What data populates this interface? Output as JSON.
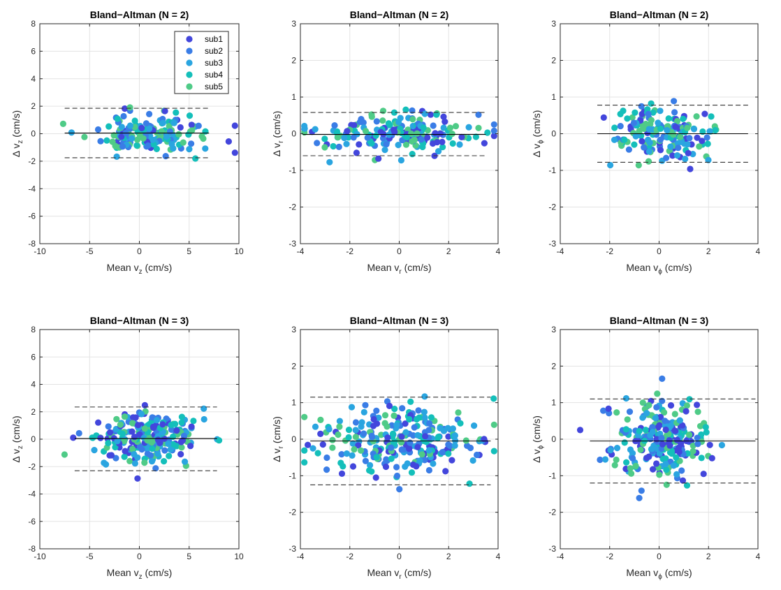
{
  "subjects": [
    {
      "name": "sub1",
      "color": "#4346DC"
    },
    {
      "name": "sub2",
      "color": "#3A7DE6"
    },
    {
      "name": "sub3",
      "color": "#2AA5E0"
    },
    {
      "name": "sub4",
      "color": "#14BFBA"
    },
    {
      "name": "sub5",
      "color": "#4FCB87"
    }
  ],
  "chart_data": [
    {
      "type": "scatter",
      "title": "Bland−Altman (N = 2)",
      "xlabel": "Mean v",
      "xsub": "z",
      "xunit": " (cm/s)",
      "ylabel_delta": "Δ",
      "ylabel": "v",
      "ysub": "z",
      "yunit": " (cm/s)",
      "xlim": [
        -10,
        10
      ],
      "ylim": [
        -8,
        8
      ],
      "xticks": [
        -10,
        -5,
        0,
        5,
        10
      ],
      "yticks": [
        -8,
        -6,
        -4,
        -2,
        0,
        2,
        4,
        6,
        8
      ],
      "bias": 0.05,
      "loa_upper": 1.85,
      "loa_lower": -1.75,
      "line_xrange": [
        -7.5,
        7
      ],
      "legend": true,
      "n_points": 160,
      "seed": 11,
      "spread_x": 3.0,
      "spread_y": 0.75,
      "mean_x": 0.8,
      "y_clip": 3.2
    },
    {
      "type": "scatter",
      "title": "Bland−Altman (N = 2)",
      "xlabel": "Mean v",
      "xsub": "r",
      "xunit": " (cm/s)",
      "ylabel_delta": "Δ",
      "ylabel": "v",
      "ysub": "r",
      "yunit": " (cm/s)",
      "xlim": [
        -4,
        4
      ],
      "ylim": [
        -3,
        3
      ],
      "xticks": [
        -4,
        -2,
        0,
        2,
        4
      ],
      "yticks": [
        -3,
        -2,
        -1,
        0,
        1,
        2,
        3
      ],
      "bias": -0.02,
      "loa_upper": 0.58,
      "loa_lower": -0.6,
      "line_xrange": [
        -3.9,
        3.5
      ],
      "legend": false,
      "n_points": 180,
      "seed": 23,
      "spread_x": 1.7,
      "spread_y": 0.26,
      "mean_x": 0.0,
      "y_clip": 1.2
    },
    {
      "type": "scatter",
      "title": "Bland−Altman (N = 2)",
      "xlabel": "Mean v",
      "xsub": "ϕ",
      "xunit": " (cm/s)",
      "ylabel_delta": "Δ",
      "ylabel": "v",
      "ysub": "ϕ",
      "yunit": " (cm/s)",
      "xlim": [
        -4,
        4
      ],
      "ylim": [
        -3,
        3
      ],
      "xticks": [
        -4,
        -2,
        0,
        2,
        4
      ],
      "yticks": [
        -3,
        -2,
        -1,
        0,
        1,
        2,
        3
      ],
      "bias": 0.0,
      "loa_upper": 0.78,
      "loa_lower": -0.78,
      "line_xrange": [
        -2.5,
        3.6
      ],
      "legend": false,
      "n_points": 170,
      "seed": 37,
      "spread_x": 1.1,
      "spread_y": 0.36,
      "mean_x": 0.0,
      "y_clip": 1.45
    },
    {
      "type": "scatter",
      "title": "Bland−Altman (N = 3)",
      "xlabel": "Mean v",
      "xsub": "z",
      "xunit": " (cm/s)",
      "ylabel_delta": "Δ",
      "ylabel": "v",
      "ysub": "z",
      "yunit": " (cm/s)",
      "xlim": [
        -10,
        10
      ],
      "ylim": [
        -8,
        8
      ],
      "xticks": [
        -10,
        -5,
        0,
        5,
        10
      ],
      "yticks": [
        -8,
        -6,
        -4,
        -2,
        0,
        2,
        4,
        6,
        8
      ],
      "bias": 0.05,
      "loa_upper": 2.35,
      "loa_lower": -2.3,
      "line_xrange": [
        -6.5,
        7.8
      ],
      "legend": false,
      "n_points": 240,
      "seed": 41,
      "spread_x": 2.8,
      "spread_y": 1.0,
      "mean_x": 0.5,
      "y_clip": 4.3
    },
    {
      "type": "scatter",
      "title": "Bland−Altman (N = 3)",
      "xlabel": "Mean v",
      "xsub": "r",
      "xunit": " (cm/s)",
      "ylabel_delta": "Δ",
      "ylabel": "v",
      "ysub": "r",
      "yunit": " (cm/s)",
      "xlim": [
        -4,
        4
      ],
      "ylim": [
        -3,
        3
      ],
      "xticks": [
        -4,
        -2,
        0,
        2,
        4
      ],
      "yticks": [
        -3,
        -2,
        -1,
        0,
        1,
        2,
        3
      ],
      "bias": -0.05,
      "loa_upper": 1.15,
      "loa_lower": -1.25,
      "line_xrange": [
        -3.6,
        3.7
      ],
      "legend": false,
      "n_points": 260,
      "seed": 53,
      "spread_x": 1.6,
      "spread_y": 0.5,
      "mean_x": 0.0,
      "y_clip": 1.9
    },
    {
      "type": "scatter",
      "title": "Bland−Altman (N = 3)",
      "xlabel": "Mean v",
      "xsub": "ϕ",
      "xunit": " (cm/s)",
      "ylabel_delta": "Δ",
      "ylabel": "v",
      "ysub": "ϕ",
      "yunit": " (cm/s)",
      "xlim": [
        -4,
        4
      ],
      "ylim": [
        -3,
        3
      ],
      "xticks": [
        -4,
        -2,
        0,
        2,
        4
      ],
      "yticks": [
        -3,
        -2,
        -1,
        0,
        1,
        2,
        3
      ],
      "bias": -0.05,
      "loa_upper": 1.1,
      "loa_lower": -1.2,
      "line_xrange": [
        -2.8,
        3.9
      ],
      "legend": false,
      "n_points": 250,
      "seed": 67,
      "spread_x": 1.0,
      "spread_y": 0.5,
      "mean_x": 0.0,
      "y_clip": 2.45
    }
  ]
}
